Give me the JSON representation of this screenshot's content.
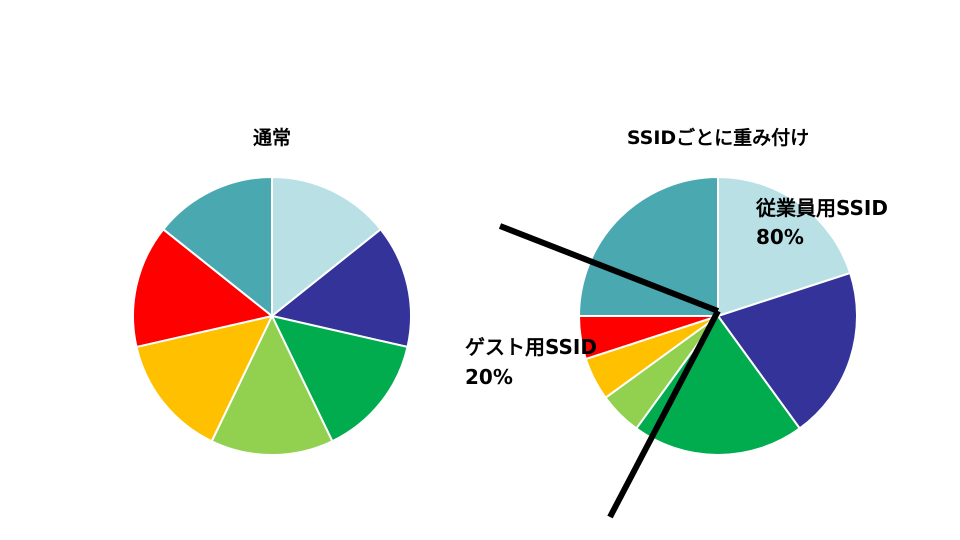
{
  "chart_data": [
    {
      "type": "pie",
      "title": "通常",
      "colors": [
        "#b9e0e5",
        "#343399",
        "#00ac4e",
        "#92d050",
        "#ffc000",
        "#ff0000",
        "#4aa8b0"
      ],
      "values": [
        14.2857,
        14.2857,
        14.2857,
        14.2857,
        14.2857,
        14.2857,
        14.2857
      ]
    },
    {
      "type": "pie",
      "title": "SSIDごとに重み付け",
      "colors": [
        "#b9e0e5",
        "#343399",
        "#00ac4e",
        "#92d050",
        "#ffc000",
        "#ff0000",
        "#4aa8b0"
      ],
      "values": [
        20,
        20,
        20,
        5,
        5,
        5,
        25
      ],
      "annotations": [
        {
          "line1": "従業員用SSID",
          "line2": "80%"
        },
        {
          "line1": "ゲスト用SSID",
          "line2": "20%"
        }
      ]
    }
  ]
}
